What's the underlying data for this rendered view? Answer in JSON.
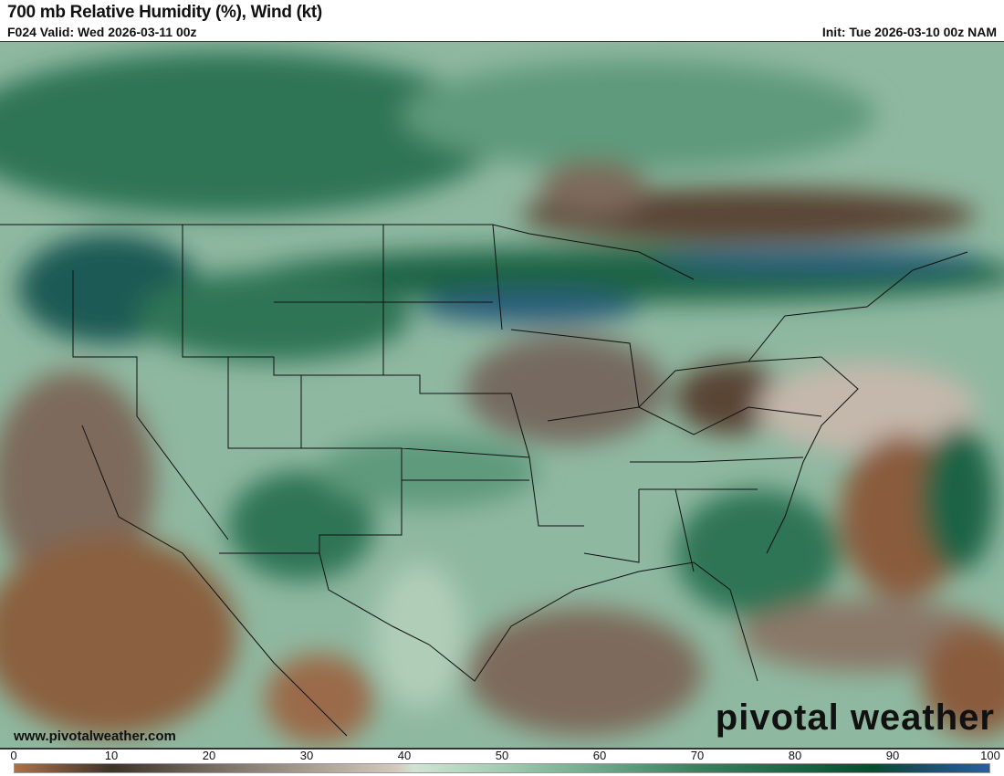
{
  "header": {
    "title": "700 mb Relative Humidity (%), Wind (kt)",
    "valid": "F024 Valid: Wed 2026-03-11 00z",
    "init": "Init: Tue 2026-03-10 00z NAM"
  },
  "footer": {
    "url": "www.pivotalweather.com",
    "brand": "pivotal weather"
  },
  "colorbar": {
    "ticks": [
      "0",
      "10",
      "20",
      "30",
      "40",
      "50",
      "60",
      "70",
      "80",
      "90",
      "100"
    ],
    "stops": [
      {
        "value": 0,
        "color": "#a8714b"
      },
      {
        "value": 10,
        "color": "#3f3329"
      },
      {
        "value": 20,
        "color": "#766b60"
      },
      {
        "value": 30,
        "color": "#a69c90"
      },
      {
        "value": 39,
        "color": "#d4c8bc"
      },
      {
        "value": 41,
        "color": "#cfe4d2"
      },
      {
        "value": 50,
        "color": "#a2cbb0"
      },
      {
        "value": 60,
        "color": "#6fa789"
      },
      {
        "value": 70,
        "color": "#407e5e"
      },
      {
        "value": 80,
        "color": "#1f6344"
      },
      {
        "value": 88,
        "color": "#0b4a2f"
      },
      {
        "value": 92,
        "color": "#1a4a5a"
      },
      {
        "value": 100,
        "color": "#2b5d9c"
      }
    ]
  }
}
